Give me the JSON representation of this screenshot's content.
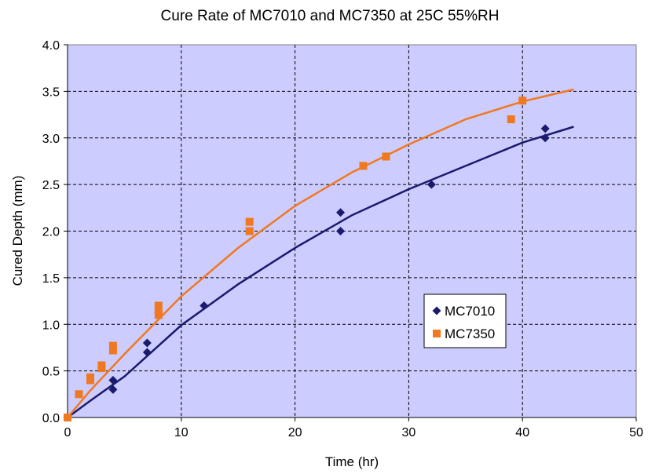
{
  "chart_data": {
    "type": "scatter",
    "title": "Cure Rate of MC7010 and MC7350 at 25C 55%RH",
    "xlabel": "Time (hr)",
    "ylabel": "Cured Depth (mm)",
    "xlim": [
      0,
      50
    ],
    "ylim": [
      0,
      4.0
    ],
    "x_ticks": [
      "0",
      "10",
      "20",
      "30",
      "40",
      "50"
    ],
    "y_ticks": [
      "0.0",
      "0.5",
      "1.0",
      "1.5",
      "2.0",
      "2.5",
      "3.0",
      "3.5",
      "4.0"
    ],
    "grid": true,
    "legend_position": "center-right",
    "plot_background": "#ccccff",
    "series": [
      {
        "name": "MC7010",
        "marker": "diamond",
        "color": "#1a1a6e",
        "trendline_color": "#1a1a6e",
        "points": [
          [
            0,
            0
          ],
          [
            4,
            0.3
          ],
          [
            4,
            0.4
          ],
          [
            7,
            0.7
          ],
          [
            7,
            0.8
          ],
          [
            12,
            1.2
          ],
          [
            24,
            2.0
          ],
          [
            24,
            2.2
          ],
          [
            32,
            2.5
          ],
          [
            42,
            3.0
          ],
          [
            42,
            3.1
          ]
        ],
        "trendline": [
          [
            0,
            0
          ],
          [
            2,
            0.18
          ],
          [
            5,
            0.44
          ],
          [
            10,
            0.99
          ],
          [
            15,
            1.43
          ],
          [
            20,
            1.82
          ],
          [
            25,
            2.17
          ],
          [
            30,
            2.45
          ],
          [
            35,
            2.7
          ],
          [
            40,
            2.95
          ],
          [
            44.5,
            3.12
          ]
        ]
      },
      {
        "name": "MC7350",
        "marker": "square",
        "color": "#f07820",
        "trendline_color": "#f07820",
        "points": [
          [
            0,
            0
          ],
          [
            1,
            0.25
          ],
          [
            2,
            0.4
          ],
          [
            2,
            0.43
          ],
          [
            3,
            0.53
          ],
          [
            3,
            0.56
          ],
          [
            4,
            0.72
          ],
          [
            4,
            0.77
          ],
          [
            8,
            1.1
          ],
          [
            8,
            1.15
          ],
          [
            8,
            1.2
          ],
          [
            16,
            2.0
          ],
          [
            16,
            2.1
          ],
          [
            26,
            2.7
          ],
          [
            28,
            2.8
          ],
          [
            39,
            3.2
          ],
          [
            40,
            3.4
          ]
        ],
        "trendline": [
          [
            0,
            0
          ],
          [
            2,
            0.29
          ],
          [
            5,
            0.68
          ],
          [
            10,
            1.3
          ],
          [
            15,
            1.82
          ],
          [
            20,
            2.27
          ],
          [
            25,
            2.63
          ],
          [
            30,
            2.93
          ],
          [
            35,
            3.2
          ],
          [
            40,
            3.39
          ],
          [
            44.5,
            3.52
          ]
        ]
      }
    ]
  }
}
